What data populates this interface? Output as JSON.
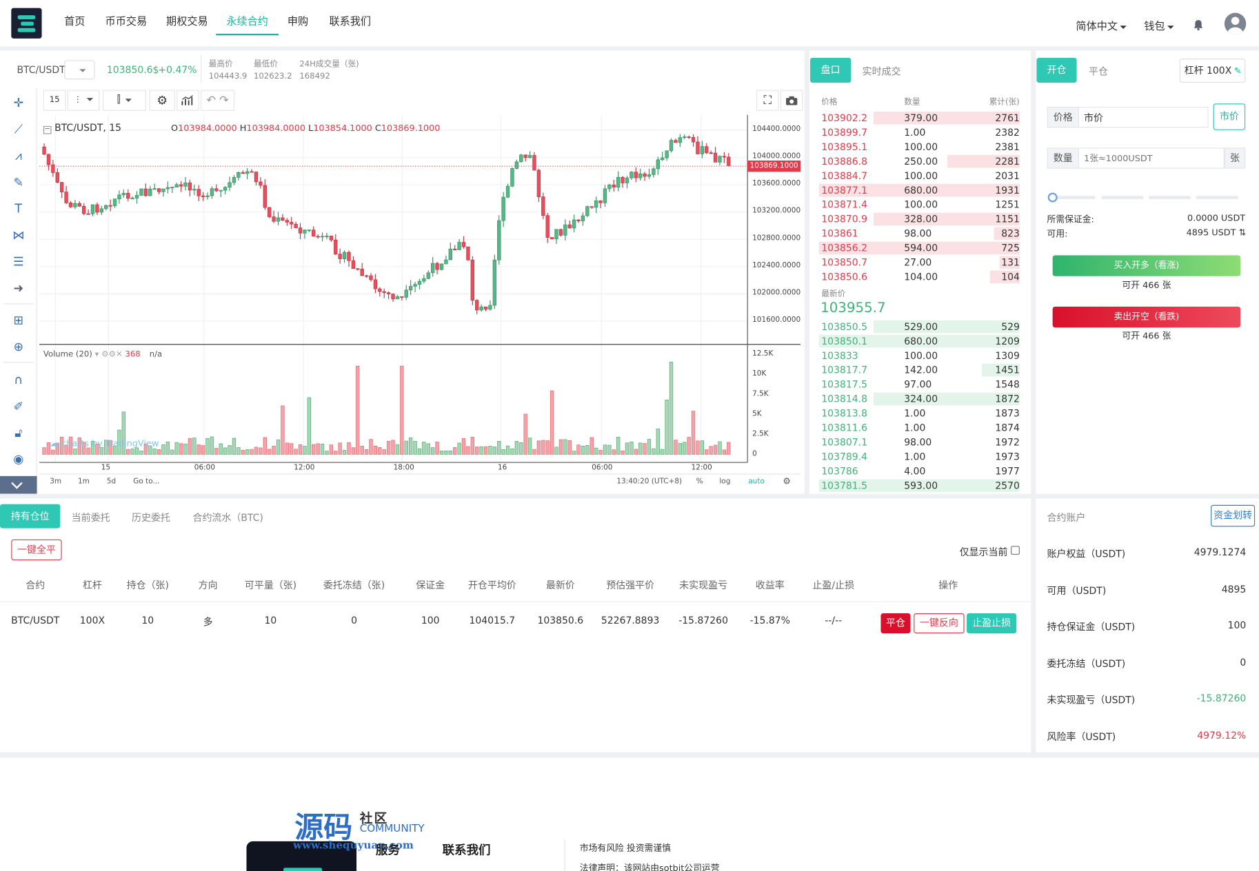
{
  "nav": {
    "items": [
      "首页",
      "币币交易",
      "期权交易",
      "永续合约",
      "申购",
      "联系我们"
    ],
    "active": 3,
    "language": "简体中文",
    "wallet": "钱包"
  },
  "ticker": {
    "pair": "BTC/USDT",
    "price": "103850.6$",
    "change": "+0.47%",
    "high_label": "最高价",
    "high": "104443.9",
    "low_label": "最低价",
    "low": "102623.2",
    "vol_label": "24H成交量（张)",
    "vol": "168492"
  },
  "chart": {
    "interval": "15",
    "title": "BTC/USDT, 15",
    "ohlc": {
      "o": "103984.0000",
      "h": "103984.0000",
      "l": "103854.1000",
      "c": "103869.1000"
    },
    "y_ticks": [
      "104400.0000",
      "104000.0000",
      "103600.0000",
      "103200.0000",
      "102800.0000",
      "102400.0000",
      "102000.0000",
      "101600.0000"
    ],
    "last_price_tag": "103869.1000",
    "x_ticks": [
      "15",
      "06:00",
      "12:00",
      "18:00",
      "16",
      "06:00",
      "12:00"
    ],
    "volume_label": "Volume (20)",
    "volume_value": "368",
    "volume_na": "n/a",
    "vol_ticks": [
      "12.5K",
      "10K",
      "7.5K",
      "5K",
      "2.5K",
      "0"
    ],
    "watermark": "charts by TradingView",
    "ranges": [
      "3m",
      "1m",
      "5d"
    ],
    "goto": "Go to...",
    "clock": "13:40:20 (UTC+8)",
    "pct": "%",
    "log": "log",
    "auto": "auto",
    "colors": {
      "up": "#53b987",
      "down": "#eb4d5c"
    }
  },
  "orderbook": {
    "tabs": [
      "盘口",
      "实时成交"
    ],
    "headers": [
      "价格",
      "数量",
      "累计(张)"
    ],
    "asks": [
      [
        "103902.2",
        "379.00",
        "2761",
        0.73
      ],
      [
        "103899.7",
        "1.00",
        "2382",
        0
      ],
      [
        "103895.1",
        "100.00",
        "2381",
        0
      ],
      [
        "103886.8",
        "250.00",
        "2281",
        0.36
      ],
      [
        "103884.7",
        "100.00",
        "2031",
        0
      ],
      [
        "103877.1",
        "680.00",
        "1931",
        1.0
      ],
      [
        "103871.4",
        "100.00",
        "1251",
        0
      ],
      [
        "103870.9",
        "328.00",
        "1151",
        0.73
      ],
      [
        "103861",
        "98.00",
        "823",
        0.13
      ],
      [
        "103856.2",
        "594.00",
        "725",
        1.0
      ],
      [
        "103850.7",
        "27.00",
        "131",
        0.1
      ],
      [
        "103850.6",
        "104.00",
        "104",
        0.15
      ]
    ],
    "last_label": "最新价",
    "last": "103955.7",
    "bids": [
      [
        "103850.5",
        "529.00",
        "529",
        0.73
      ],
      [
        "103850.1",
        "680.00",
        "1209",
        1.0
      ],
      [
        "103833",
        "100.00",
        "1309",
        0
      ],
      [
        "103817.7",
        "142.00",
        "1451",
        0.19
      ],
      [
        "103817.5",
        "97.00",
        "1548",
        0
      ],
      [
        "103814.8",
        "324.00",
        "1872",
        0.73
      ],
      [
        "103813.8",
        "1.00",
        "1873",
        0
      ],
      [
        "103811.6",
        "1.00",
        "1874",
        0
      ],
      [
        "103807.1",
        "98.00",
        "1972",
        0
      ],
      [
        "103789.4",
        "1.00",
        "1973",
        0
      ],
      [
        "103786",
        "4.00",
        "1977",
        0
      ],
      [
        "103781.5",
        "593.00",
        "2570",
        1.0
      ]
    ]
  },
  "trade": {
    "tabs": [
      "开仓",
      "平仓"
    ],
    "leverage": "杠杆 100X",
    "price_label": "价格",
    "price_value": "市价",
    "market_btn": "市价",
    "qty_label": "数量",
    "qty_placeholder": "1张≈1000USDT",
    "qty_unit": "张",
    "margin_label": "所需保证金:",
    "margin_value": "0.0000 USDT",
    "avail_label": "可用:",
    "avail_value": "4895 USDT",
    "buy_btn": "买入开多（看涨)",
    "buy_sub": "可开 466 张",
    "sell_btn": "卖出开空（看跌)",
    "sell_sub": "可开 466 张"
  },
  "positions": {
    "tabs": [
      "持有仓位",
      "当前委托",
      "历史委托",
      "合约流水（BTC)"
    ],
    "close_all": "一键全平",
    "only_current": "仅显示当前",
    "headers": [
      "合约",
      "杠杆",
      "持仓（张)",
      "方向",
      "可平量（张)",
      "委托冻结（张)",
      "保证金",
      "开仓平均价",
      "最新价",
      "预估强平价",
      "未实现盈亏",
      "收益率",
      "止盈/止损",
      "操作"
    ],
    "row": [
      "BTC/USDT",
      "100X",
      "10",
      "多",
      "10",
      "0",
      "100",
      "104015.7",
      "103850.6",
      "52267.8893",
      "-15.87260",
      "-15.87%",
      "--/--"
    ],
    "actions": [
      "平仓",
      "一键反向",
      "止盈止损"
    ]
  },
  "account": {
    "title": "合约账户",
    "transfer": "资金划转",
    "rows": [
      [
        "账户权益（USDT)",
        "4979.1274"
      ],
      [
        "可用（USDT)",
        "4895"
      ],
      [
        "持仓保证金（USDT)",
        "100"
      ],
      [
        "委托冻结（USDT)",
        "0"
      ],
      [
        "未实现盈亏（USDT)",
        "-15.87260"
      ],
      [
        "风险率（USDT)",
        "4979.12%"
      ]
    ]
  },
  "footer": {
    "brand_big": "源码",
    "brand_small": "社区",
    "brand_en": "COMMUNITY",
    "brand_url": "www.shequyuan.com",
    "service": "服务",
    "contact": "联系我们",
    "risk": "市场有风险 投资需谨慎",
    "legal": "法律声明：该网站由sotbit公司运营"
  }
}
